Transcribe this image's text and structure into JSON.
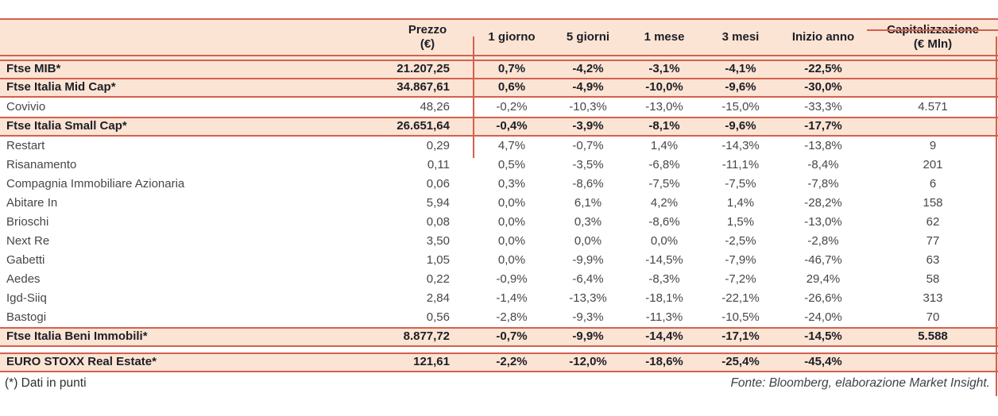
{
  "colors": {
    "border_red": "#d4604e",
    "header_peach": "#fbe4d3",
    "ink": "#1d1e26",
    "stock_gray": "#474747"
  },
  "table": {
    "columns": [
      {
        "line1": "",
        "line2": ""
      },
      {
        "line1": "Prezzo",
        "line2": "(€)"
      },
      {
        "line1": "1 giorno",
        "line2": ""
      },
      {
        "line1": "5 giorni",
        "line2": ""
      },
      {
        "line1": "1 mese",
        "line2": ""
      },
      {
        "line1": "3 mesi",
        "line2": ""
      },
      {
        "line1": "Inizio anno",
        "line2": ""
      },
      {
        "line1": "Capitalizzazione",
        "line2": "(€ Mln)"
      }
    ],
    "rows": [
      {
        "type": "index",
        "name": "Ftse MIB*",
        "prezzo": "21.207,25",
        "d1": "0,7%",
        "d5": "-4,2%",
        "m1": "-3,1%",
        "m3": "-4,1%",
        "ytd": "-22,5%",
        "cap": ""
      },
      {
        "type": "index",
        "name": "Ftse Italia Mid Cap*",
        "prezzo": "34.867,61",
        "d1": "0,6%",
        "d5": "-4,9%",
        "m1": "-10,0%",
        "m3": "-9,6%",
        "ytd": "-30,0%",
        "cap": ""
      },
      {
        "type": "stock",
        "name": "Covivio",
        "prezzo": "48,26",
        "d1": "-0,2%",
        "d5": "-10,3%",
        "m1": "-13,0%",
        "m3": "-15,0%",
        "ytd": "-33,3%",
        "cap": "4.571"
      },
      {
        "type": "index",
        "name": "Ftse Italia Small Cap*",
        "prezzo": "26.651,64",
        "d1": "-0,4%",
        "d5": "-3,9%",
        "m1": "-8,1%",
        "m3": "-9,6%",
        "ytd": "-17,7%",
        "cap": ""
      },
      {
        "type": "stock",
        "name": "Restart",
        "prezzo": "0,29",
        "d1": "4,7%",
        "d5": "-0,7%",
        "m1": "1,4%",
        "m3": "-14,3%",
        "ytd": "-13,8%",
        "cap": "9"
      },
      {
        "type": "stock",
        "name": "Risanamento",
        "prezzo": "0,11",
        "d1": "0,5%",
        "d5": "-3,5%",
        "m1": "-6,8%",
        "m3": "-11,1%",
        "ytd": "-8,4%",
        "cap": "201"
      },
      {
        "type": "stock",
        "name": "Compagnia Immobiliare Azionaria",
        "prezzo": "0,06",
        "d1": "0,3%",
        "d5": "-8,6%",
        "m1": "-7,5%",
        "m3": "-7,5%",
        "ytd": "-7,8%",
        "cap": "6"
      },
      {
        "type": "stock",
        "name": "Abitare In",
        "prezzo": "5,94",
        "d1": "0,0%",
        "d5": "6,1%",
        "m1": "4,2%",
        "m3": "1,4%",
        "ytd": "-28,2%",
        "cap": "158"
      },
      {
        "type": "stock",
        "name": "Brioschi",
        "prezzo": "0,08",
        "d1": "0,0%",
        "d5": "0,3%",
        "m1": "-8,6%",
        "m3": "1,5%",
        "ytd": "-13,0%",
        "cap": "62"
      },
      {
        "type": "stock",
        "name": "Next Re",
        "prezzo": "3,50",
        "d1": "0,0%",
        "d5": "0,0%",
        "m1": "0,0%",
        "m3": "-2,5%",
        "ytd": "-2,8%",
        "cap": "77"
      },
      {
        "type": "stock",
        "name": "Gabetti",
        "prezzo": "1,05",
        "d1": "0,0%",
        "d5": "-9,9%",
        "m1": "-14,5%",
        "m3": "-7,9%",
        "ytd": "-46,7%",
        "cap": "63"
      },
      {
        "type": "stock",
        "name": "Aedes",
        "prezzo": "0,22",
        "d1": "-0,9%",
        "d5": "-6,4%",
        "m1": "-8,3%",
        "m3": "-7,2%",
        "ytd": "29,4%",
        "cap": "58"
      },
      {
        "type": "stock",
        "name": "Igd-Siiq",
        "prezzo": "2,84",
        "d1": "-1,4%",
        "d5": "-13,3%",
        "m1": "-18,1%",
        "m3": "-22,1%",
        "ytd": "-26,6%",
        "cap": "313"
      },
      {
        "type": "stock",
        "name": "Bastogi",
        "prezzo": "0,56",
        "d1": "-2,8%",
        "d5": "-9,3%",
        "m1": "-11,3%",
        "m3": "-10,5%",
        "ytd": "-24,0%",
        "cap": "70"
      },
      {
        "type": "index",
        "name": "Ftse Italia Beni Immobili*",
        "prezzo": "8.877,72",
        "d1": "-0,7%",
        "d5": "-9,9%",
        "m1": "-14,4%",
        "m3": "-17,1%",
        "ytd": "-14,5%",
        "cap": "5.588"
      },
      {
        "type": "index",
        "gap_before": true,
        "name": "EURO STOXX Real Estate*",
        "prezzo": "121,61",
        "d1": "-2,2%",
        "d5": "-12,0%",
        "m1": "-18,6%",
        "m3": "-25,4%",
        "ytd": "-45,4%",
        "cap": ""
      }
    ]
  },
  "footer": {
    "note": "(*) Dati in punti",
    "fonte": "Fonte: Bloomberg, elaborazione Market Insight."
  }
}
